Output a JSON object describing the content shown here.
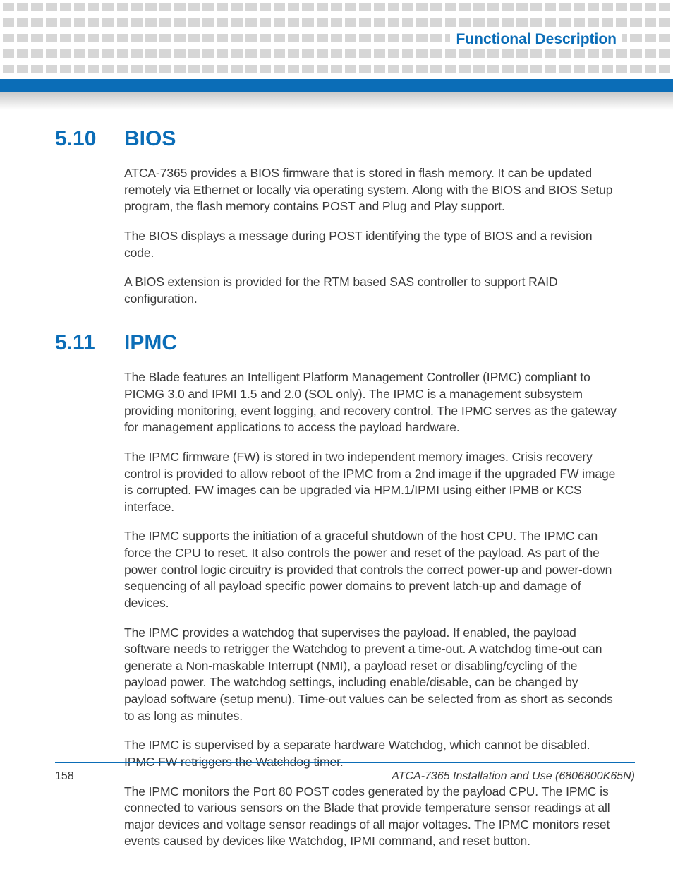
{
  "header": {
    "chapter_title": "Functional Description",
    "accent_color": "#0b6db7",
    "dot_color": "#d6d6d6"
  },
  "sections": [
    {
      "number": "5.10",
      "title": "BIOS",
      "paragraphs": [
        "ATCA-7365 provides a BIOS firmware that is stored in flash memory. It can be updated remotely via Ethernet or locally via operating system. Along with the BIOS and BIOS Setup program, the flash memory contains POST and Plug and Play support.",
        "The BIOS displays a message during POST identifying the type of BIOS and a revision code.",
        "A BIOS extension is provided for the RTM based SAS controller to support RAID configuration."
      ]
    },
    {
      "number": "5.11",
      "title": "IPMC",
      "paragraphs": [
        "The Blade features an Intelligent Platform Management Controller (IPMC) compliant to PICMG 3.0 and IPMI 1.5 and 2.0 (SOL only). The IPMC is a management subsystem providing monitoring, event logging, and recovery control. The IPMC serves as the gateway for management applications to access the payload hardware.",
        "The IPMC firmware (FW) is stored in two independent memory images. Crisis recovery control is provided to allow reboot of the IPMC from a 2nd image if the upgraded FW image is corrupted. FW images can be upgraded via HPM.1/IPMI using either IPMB or KCS interface.",
        "The IPMC supports the initiation of a graceful shutdown of the host CPU. The IPMC can force the CPU to reset. It also controls the power and reset of the payload. As part of the power control logic circuitry is provided that controls the correct power-up and power-down sequencing of all payload specific power domains to prevent latch-up and damage of devices.",
        "The IPMC provides a watchdog that supervises the payload. If enabled, the payload software needs to retrigger the Watchdog to prevent a time-out. A watchdog time-out can generate a Non-maskable Interrupt (NMI), a payload reset or disabling/cycling of the payload power. The watchdog settings, including enable/disable, can be changed by payload software (setup menu). Time-out values can be selected from as short as seconds to as long as minutes.",
        "The IPMC is supervised by a separate hardware Watchdog, which cannot be disabled. IPMC FW retriggers the Watchdog timer.",
        "The IPMC monitors the Port 80 POST codes generated by the payload CPU. The IPMC is connected to various sensors on the Blade that provide temperature sensor readings at all major devices and voltage sensor readings of all major voltages. The IPMC monitors reset events caused by devices like Watchdog, IPMI command, and reset button."
      ]
    }
  ],
  "footer": {
    "page_number": "158",
    "doc_title": "ATCA-7365 Installation and Use (6806800K65N)"
  }
}
